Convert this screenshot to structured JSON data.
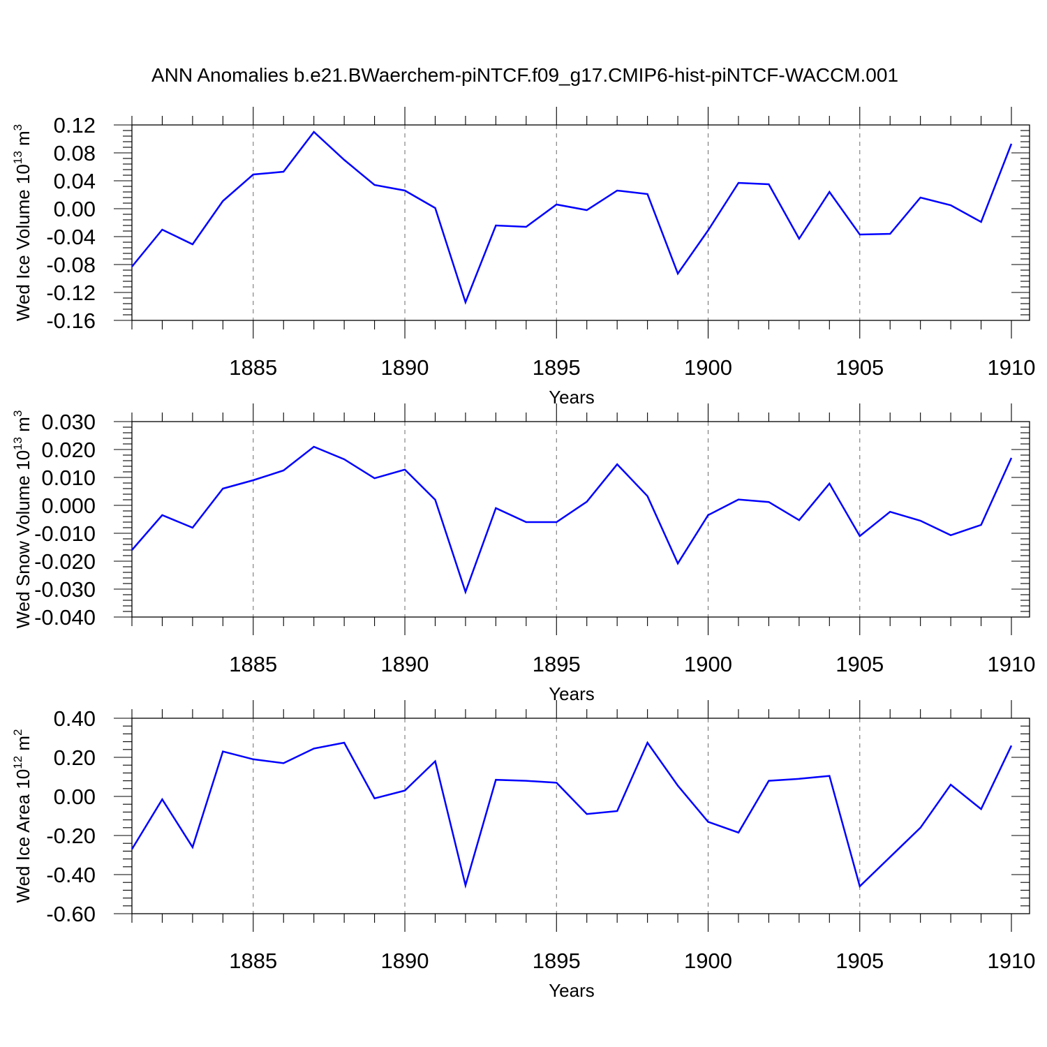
{
  "chart_data": [
    {
      "type": "line",
      "title": "ANN Anomalies b.e21.BWaerchem-piNTCF.f09_g17.CMIP6-hist-piNTCF-WACCM.001",
      "xlabel": "Years",
      "ylabel": "Wed Ice Volume 10",
      "ylabel_exp": "13",
      "ylabel_unit": "m",
      "ylabel_unit_exp": "3",
      "xlim": [
        1881,
        1910
      ],
      "ylim": [
        -0.16,
        0.12
      ],
      "yticks": [
        "0.12",
        "0.08",
        "0.04",
        "0.00",
        "-0.04",
        "-0.08",
        "-0.12",
        "-0.16"
      ],
      "ytick_values": [
        0.12,
        0.08,
        0.04,
        0.0,
        -0.04,
        -0.08,
        -0.12,
        -0.16
      ],
      "xticks": [
        "1885",
        "1890",
        "1895",
        "1900",
        "1905",
        "1910"
      ],
      "xtick_values": [
        1885,
        1890,
        1895,
        1900,
        1905,
        1910
      ],
      "grid": "vertical-dashed",
      "color": "#0000ff",
      "x": [
        1881,
        1882,
        1883,
        1884,
        1885,
        1886,
        1887,
        1888,
        1889,
        1890,
        1891,
        1892,
        1893,
        1894,
        1895,
        1896,
        1897,
        1898,
        1899,
        1900,
        1901,
        1902,
        1903,
        1904,
        1905,
        1906,
        1907,
        1908,
        1909,
        1910
      ],
      "values": [
        -0.083,
        -0.03,
        -0.051,
        0.011,
        0.049,
        0.053,
        0.11,
        0.07,
        0.034,
        0.026,
        0.001,
        -0.134,
        -0.024,
        -0.026,
        0.006,
        -0.002,
        0.026,
        0.021,
        -0.093,
        -0.031,
        0.037,
        0.035,
        -0.043,
        0.024,
        -0.037,
        -0.036,
        0.016,
        0.005,
        -0.019,
        0.093
      ]
    },
    {
      "type": "line",
      "xlabel": "Years",
      "ylabel": "Wed Snow Volume 10",
      "ylabel_exp": "13",
      "ylabel_unit": "m",
      "ylabel_unit_exp": "3",
      "xlim": [
        1881,
        1910
      ],
      "ylim": [
        -0.04,
        0.03
      ],
      "yticks": [
        "0.030",
        "0.020",
        "0.010",
        "0.000",
        "-0.010",
        "-0.020",
        "-0.030",
        "-0.040"
      ],
      "ytick_values": [
        0.03,
        0.02,
        0.01,
        0.0,
        -0.01,
        -0.02,
        -0.03,
        -0.04
      ],
      "xticks": [
        "1885",
        "1890",
        "1895",
        "1900",
        "1905",
        "1910"
      ],
      "xtick_values": [
        1885,
        1890,
        1895,
        1900,
        1905,
        1910
      ],
      "grid": "vertical-dashed",
      "color": "#0000ff",
      "x": [
        1881,
        1882,
        1883,
        1884,
        1885,
        1886,
        1887,
        1888,
        1889,
        1890,
        1891,
        1892,
        1893,
        1894,
        1895,
        1896,
        1897,
        1898,
        1899,
        1900,
        1901,
        1902,
        1903,
        1904,
        1905,
        1906,
        1907,
        1908,
        1909,
        1910
      ],
      "values": [
        -0.016,
        -0.0035,
        -0.008,
        0.006,
        0.009,
        0.0125,
        0.021,
        0.0165,
        0.0097,
        0.0128,
        0.002,
        -0.031,
        -0.001,
        -0.006,
        -0.006,
        0.0013,
        0.0147,
        0.0033,
        -0.0208,
        -0.0035,
        0.0021,
        0.0012,
        -0.0053,
        0.0078,
        -0.011,
        -0.0023,
        -0.0055,
        -0.0107,
        -0.007,
        0.017
      ]
    },
    {
      "type": "line",
      "xlabel": "Years",
      "ylabel": "Wed Ice Area 10",
      "ylabel_exp": "12",
      "ylabel_unit": "m",
      "ylabel_unit_exp": "2",
      "xlim": [
        1881,
        1910
      ],
      "ylim": [
        -0.6,
        0.4
      ],
      "yticks": [
        "0.40",
        "0.20",
        "0.00",
        "-0.20",
        "-0.40",
        "-0.60"
      ],
      "ytick_values": [
        0.4,
        0.2,
        0.0,
        -0.2,
        -0.4,
        -0.6
      ],
      "xticks": [
        "1885",
        "1890",
        "1895",
        "1900",
        "1905",
        "1910"
      ],
      "xtick_values": [
        1885,
        1890,
        1895,
        1900,
        1905,
        1910
      ],
      "grid": "vertical-dashed",
      "color": "#0000ff",
      "x": [
        1881,
        1882,
        1883,
        1884,
        1885,
        1886,
        1887,
        1888,
        1889,
        1890,
        1891,
        1892,
        1893,
        1894,
        1895,
        1896,
        1897,
        1898,
        1899,
        1900,
        1901,
        1902,
        1903,
        1904,
        1905,
        1906,
        1907,
        1908,
        1909,
        1910
      ],
      "values": [
        -0.27,
        -0.015,
        -0.26,
        0.23,
        0.19,
        0.17,
        0.245,
        0.275,
        -0.01,
        0.03,
        0.18,
        -0.455,
        0.085,
        0.08,
        0.07,
        -0.09,
        -0.075,
        0.275,
        0.055,
        -0.13,
        -0.185,
        0.08,
        0.09,
        0.105,
        -0.46,
        -0.31,
        -0.16,
        0.06,
        -0.065,
        0.26
      ]
    }
  ]
}
